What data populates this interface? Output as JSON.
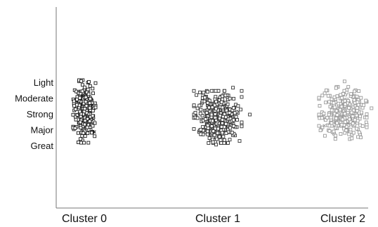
{
  "chart_data": {
    "type": "scatter",
    "title": "",
    "xlabel": "",
    "ylabel": "",
    "categories": [
      "Cluster 0",
      "Cluster 1",
      "Cluster 2"
    ],
    "y_ticks": [
      "Light",
      "Moderate",
      "Strong",
      "Major",
      "Great"
    ],
    "grid": false,
    "legend": "none",
    "series": [
      {
        "category": "Cluster 0",
        "color": "#1a1a1a",
        "marker": "open-square",
        "center_y": 1.8,
        "spread_y": 0.9,
        "point_count": 260,
        "outliers": [
          {
            "offset_x": 0.25,
            "y": 1.4,
            "marker": "x"
          },
          {
            "offset_x": 0.28,
            "y": 2.3,
            "marker": "x"
          },
          {
            "offset_x": 0.3,
            "y": 3.1,
            "marker": "x"
          },
          {
            "offset_x": -0.05,
            "y": 0.8,
            "marker": "x"
          }
        ]
      },
      {
        "category": "Cluster 1",
        "color": "#333333",
        "marker": "open-square",
        "center_y": 2.15,
        "spread_y": 0.75,
        "point_count": 420,
        "outliers": [
          {
            "offset_x": 0.45,
            "y": 0.3,
            "marker": "open-square"
          },
          {
            "offset_x": 0.2,
            "y": 0.5,
            "marker": "open-square"
          },
          {
            "offset_x": -0.1,
            "y": 3.3,
            "marker": "open-square"
          },
          {
            "offset_x": 0.05,
            "y": 3.4,
            "marker": "open-square"
          },
          {
            "offset_x": -0.05,
            "y": 3.9,
            "marker": "open-square"
          },
          {
            "offset_x": 0.95,
            "y": 2.0,
            "marker": "open-square"
          }
        ]
      },
      {
        "category": "Cluster 2",
        "color": "#999999",
        "marker": "open-square",
        "center_y": 1.9,
        "spread_y": 0.75,
        "point_count": 300,
        "outliers": [
          {
            "offset_x": 0.05,
            "y": -0.1,
            "marker": "open-square"
          },
          {
            "offset_x": -0.55,
            "y": 2.7,
            "marker": "x"
          },
          {
            "offset_x": 0.85,
            "y": 1.6,
            "marker": "open-square"
          },
          {
            "offset_x": 0.1,
            "y": 3.0,
            "marker": "open-square"
          }
        ]
      }
    ]
  }
}
